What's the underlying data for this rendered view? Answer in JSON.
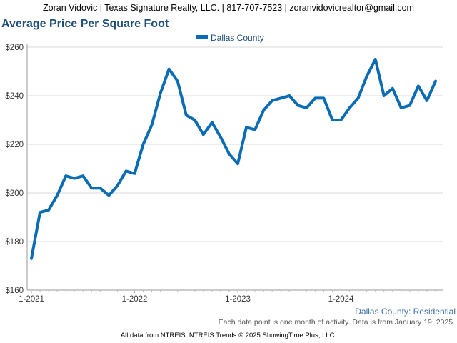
{
  "header": {
    "contact_line": "Zoran Vidovic | Texas Signature Realty, LLC. | 817-707-7523 | zoranvidovicrealtor@gmail.com"
  },
  "footer": {
    "region_label": "Dallas County: Residential",
    "note": "Each data point is one month of activity. Data is from January 19, 2025.",
    "source": "All data from NTREIS. NTREIS Trends © 2025 ShowingTime Plus, LLC."
  },
  "colors": {
    "series": "#0a6cb4",
    "title": "#1f4e79",
    "grid": "#d9d9d9"
  },
  "chart_data": {
    "type": "line",
    "title": "Average Price Per Square Foot",
    "ylim": [
      160,
      260
    ],
    "y_ticks": [
      "$160",
      "$180",
      "$200",
      "$220",
      "$240",
      "$260"
    ],
    "y_tick_values": [
      160,
      180,
      200,
      220,
      240,
      260
    ],
    "x_ticks": [
      "1-2021",
      "1-2022",
      "1-2023",
      "1-2024"
    ],
    "x_tick_positions": [
      "2021-01",
      "2022-01",
      "2023-01",
      "2024-01"
    ],
    "x_range": [
      "2021-01",
      "2025-01"
    ],
    "grid": "horizontal",
    "legend_position": "top-center",
    "series": [
      {
        "name": "Dallas County",
        "x": [
          "2021-01",
          "2021-02",
          "2021-03",
          "2021-04",
          "2021-05",
          "2021-06",
          "2021-07",
          "2021-08",
          "2021-09",
          "2021-10",
          "2021-11",
          "2021-12",
          "2022-01",
          "2022-02",
          "2022-03",
          "2022-04",
          "2022-05",
          "2022-06",
          "2022-07",
          "2022-08",
          "2022-09",
          "2022-10",
          "2022-11",
          "2022-12",
          "2023-01",
          "2023-02",
          "2023-03",
          "2023-04",
          "2023-05",
          "2023-06",
          "2023-07",
          "2023-08",
          "2023-09",
          "2023-10",
          "2023-11",
          "2023-12",
          "2024-01",
          "2024-02",
          "2024-03",
          "2024-04",
          "2024-05",
          "2024-06",
          "2024-07",
          "2024-08",
          "2024-09",
          "2024-10",
          "2024-11",
          "2024-12"
        ],
        "values": [
          173,
          192,
          193,
          199,
          207,
          206,
          207,
          202,
          202,
          199,
          203,
          209,
          208,
          220,
          228,
          241,
          251,
          246,
          232,
          230,
          224,
          229,
          223,
          216,
          212,
          227,
          226,
          234,
          238,
          239,
          240,
          236,
          235,
          239,
          239,
          230,
          230,
          235,
          239,
          248,
          255,
          240,
          243,
          235,
          236,
          244,
          238,
          246
        ]
      }
    ]
  }
}
